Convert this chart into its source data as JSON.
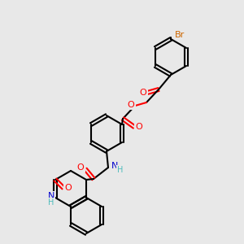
{
  "background_color": "#e8e8e8",
  "bond_color": "#000000",
  "bond_width": 1.5,
  "atom_colors": {
    "O": "#FF0000",
    "N": "#0000CD",
    "Br": "#CC6600",
    "H_label": "#4DBBBB"
  },
  "font_size": 7.5
}
